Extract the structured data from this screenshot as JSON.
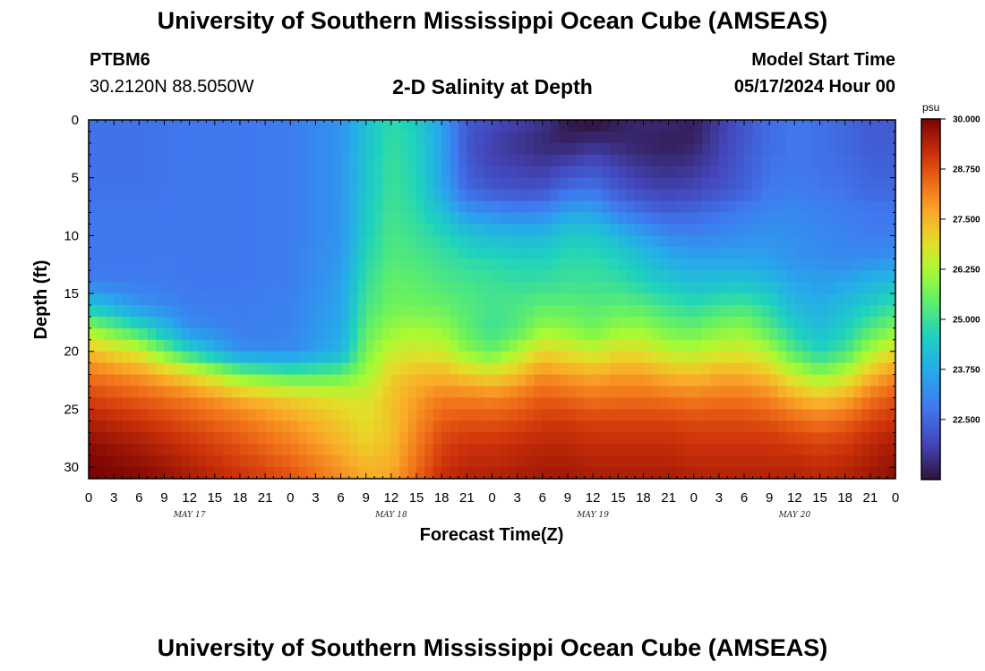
{
  "header": {
    "title": "University of Southern Mississippi Ocean Cube (AMSEAS)",
    "station_id": "PTBM6",
    "coordinates": "30.2120N  88.5050W",
    "plot_title": "2-D Salinity at Depth",
    "model_start_label": "Model Start Time",
    "model_start_value": "05/17/2024 Hour 00"
  },
  "footer": {
    "title": "University of Southern Mississippi Ocean Cube (AMSEAS)"
  },
  "chart_data": {
    "type": "heatmap",
    "title": "2-D Salinity at Depth",
    "xlabel": "Forecast Time(Z)",
    "ylabel": "Depth (ft)",
    "x_tick_labels": [
      "0",
      "3",
      "6",
      "9",
      "12",
      "15",
      "18",
      "21",
      "0",
      "3",
      "6",
      "9",
      "12",
      "15",
      "18",
      "21",
      "0",
      "3",
      "6",
      "9",
      "12",
      "15",
      "18",
      "21",
      "0",
      "3",
      "6",
      "9",
      "12",
      "15",
      "18",
      "21",
      "0"
    ],
    "day_labels": [
      {
        "label": "MAY 17",
        "x_hours": 12
      },
      {
        "label": "MAY 18",
        "x_hours": 36
      },
      {
        "label": "MAY 19",
        "x_hours": 60
      },
      {
        "label": "MAY 20",
        "x_hours": 84
      }
    ],
    "x_range_hours": [
      0,
      96
    ],
    "y_range_ft": [
      0,
      31
    ],
    "y_tick_labels": [
      "0",
      "5",
      "10",
      "15",
      "20",
      "25",
      "30"
    ],
    "y_ticks": [
      0,
      5,
      10,
      15,
      20,
      25,
      30
    ],
    "colorbar": {
      "unit": "psu",
      "min": 21.0,
      "max": 30.0,
      "tick_labels": [
        "30.000",
        "28.750",
        "27.500",
        "26.250",
        "25.000",
        "23.750",
        "22.500"
      ],
      "ticks": [
        30.0,
        28.75,
        27.5,
        26.25,
        25.0,
        23.75,
        22.5
      ]
    },
    "salinity_psu": {
      "depth_ft": [
        0,
        2,
        4,
        6,
        8,
        10,
        12,
        14,
        16,
        18,
        20,
        22,
        24,
        26,
        28,
        30,
        31
      ],
      "time_hours": [
        0,
        6,
        12,
        18,
        24,
        30,
        33,
        36,
        39,
        42,
        45,
        48,
        51,
        54,
        57,
        60,
        63,
        66,
        69,
        72,
        75,
        78,
        81,
        84,
        87,
        90,
        93,
        96
      ],
      "values": [
        [
          22.7,
          22.7,
          22.8,
          22.8,
          22.9,
          23.3,
          24.2,
          24.8,
          24.5,
          23.5,
          22.3,
          22.0,
          21.8,
          21.6,
          21.1,
          20.9,
          21.2,
          21.4,
          21.4,
          21.2,
          21.7,
          22.2,
          22.6,
          22.8,
          22.7,
          22.5,
          22.3,
          22.3
        ],
        [
          22.7,
          22.7,
          22.8,
          22.8,
          22.9,
          23.3,
          24.2,
          24.9,
          24.6,
          23.6,
          22.2,
          21.8,
          21.6,
          21.4,
          21.3,
          21.5,
          21.4,
          21.3,
          21.2,
          21.3,
          21.8,
          22.2,
          22.6,
          22.8,
          22.7,
          22.5,
          22.3,
          22.3
        ],
        [
          22.7,
          22.7,
          22.8,
          22.8,
          22.9,
          23.3,
          24.3,
          25.0,
          24.6,
          23.6,
          22.3,
          21.9,
          21.8,
          21.7,
          21.9,
          22.1,
          21.8,
          21.6,
          21.5,
          21.6,
          21.9,
          22.3,
          22.7,
          22.8,
          22.7,
          22.6,
          22.4,
          22.4
        ],
        [
          22.7,
          22.7,
          22.8,
          22.8,
          22.9,
          23.3,
          24.3,
          25.0,
          24.7,
          23.7,
          22.5,
          22.2,
          22.1,
          22.1,
          22.6,
          22.7,
          22.2,
          21.9,
          21.8,
          21.9,
          22.1,
          22.4,
          22.8,
          22.9,
          22.8,
          22.7,
          22.5,
          22.5
        ],
        [
          22.8,
          22.8,
          22.8,
          22.8,
          22.9,
          23.3,
          24.4,
          25.1,
          24.8,
          24.2,
          23.4,
          23.2,
          23.0,
          23.1,
          23.6,
          23.6,
          23.0,
          22.6,
          22.4,
          22.5,
          22.7,
          22.9,
          23.1,
          23.1,
          23.0,
          22.9,
          22.8,
          22.8
        ],
        [
          22.8,
          22.8,
          22.8,
          22.8,
          22.9,
          23.3,
          24.5,
          25.2,
          25.0,
          24.7,
          24.3,
          24.1,
          24.0,
          24.0,
          24.4,
          24.4,
          24.0,
          23.5,
          23.1,
          23.0,
          23.1,
          23.2,
          23.3,
          23.2,
          23.1,
          23.0,
          22.9,
          22.9
        ],
        [
          22.8,
          22.8,
          22.8,
          22.8,
          22.9,
          23.4,
          24.7,
          25.3,
          25.2,
          25.0,
          24.8,
          24.7,
          24.6,
          24.6,
          24.8,
          24.8,
          24.6,
          24.2,
          23.8,
          23.6,
          23.6,
          23.6,
          23.5,
          23.3,
          23.2,
          23.1,
          23.2,
          23.3
        ],
        [
          22.9,
          22.9,
          22.8,
          22.8,
          22.9,
          23.5,
          24.9,
          25.5,
          25.4,
          25.2,
          25.1,
          25.0,
          24.9,
          24.9,
          25.0,
          25.0,
          24.9,
          24.6,
          24.3,
          24.1,
          24.2,
          24.2,
          24.0,
          23.6,
          23.5,
          23.6,
          23.9,
          24.1
        ],
        [
          24.3,
          23.3,
          22.9,
          22.9,
          23.0,
          23.6,
          25.1,
          25.6,
          25.6,
          25.5,
          25.3,
          25.1,
          25.2,
          25.4,
          25.4,
          25.3,
          25.4,
          25.3,
          25.0,
          24.8,
          25.0,
          25.1,
          24.7,
          24.0,
          23.8,
          24.1,
          24.5,
          24.9
        ],
        [
          26.0,
          24.8,
          23.2,
          22.9,
          23.0,
          23.7,
          25.4,
          26.0,
          26.1,
          26.0,
          25.4,
          25.0,
          25.3,
          26.0,
          25.9,
          25.6,
          26.0,
          26.0,
          25.6,
          25.5,
          25.8,
          25.9,
          25.3,
          24.5,
          24.1,
          24.5,
          25.2,
          25.8
        ],
        [
          27.4,
          26.6,
          24.6,
          23.2,
          23.1,
          23.9,
          25.7,
          26.5,
          26.7,
          26.6,
          25.9,
          25.5,
          26.2,
          27.0,
          26.8,
          26.5,
          26.9,
          26.8,
          26.4,
          26.3,
          26.6,
          26.7,
          26.2,
          25.2,
          24.6,
          25.1,
          26.2,
          26.9
        ],
        [
          28.3,
          27.9,
          27.0,
          25.7,
          25.2,
          25.4,
          26.1,
          27.1,
          27.4,
          27.5,
          27.2,
          27.0,
          27.4,
          28.0,
          27.8,
          27.6,
          27.8,
          27.8,
          27.5,
          27.4,
          27.6,
          27.6,
          27.3,
          26.5,
          25.9,
          26.4,
          27.4,
          28.0
        ],
        [
          28.9,
          28.6,
          28.2,
          27.6,
          27.1,
          26.8,
          26.7,
          27.3,
          27.8,
          28.2,
          28.2,
          28.1,
          28.3,
          28.6,
          28.5,
          28.3,
          28.4,
          28.4,
          28.3,
          28.2,
          28.3,
          28.3,
          28.1,
          27.6,
          27.3,
          27.6,
          28.3,
          28.7
        ],
        [
          29.4,
          29.1,
          28.7,
          28.3,
          27.8,
          27.2,
          26.9,
          27.3,
          28.0,
          28.6,
          28.7,
          28.7,
          28.8,
          29.0,
          29.0,
          28.9,
          28.9,
          28.9,
          28.9,
          28.8,
          28.8,
          28.8,
          28.7,
          28.5,
          28.3,
          28.5,
          28.9,
          29.1
        ],
        [
          29.8,
          29.5,
          29.1,
          28.7,
          28.2,
          27.5,
          27.1,
          27.4,
          28.2,
          28.9,
          29.1,
          29.1,
          29.2,
          29.3,
          29.3,
          29.2,
          29.2,
          29.2,
          29.2,
          29.1,
          29.1,
          29.1,
          29.1,
          29.0,
          28.9,
          29.0,
          29.3,
          29.5
        ],
        [
          30.0,
          29.8,
          29.4,
          29.0,
          28.6,
          27.9,
          27.5,
          27.6,
          28.4,
          29.1,
          29.3,
          29.3,
          29.4,
          29.5,
          29.5,
          29.4,
          29.4,
          29.4,
          29.4,
          29.3,
          29.3,
          29.3,
          29.3,
          29.3,
          29.2,
          29.3,
          29.5,
          29.7
        ],
        [
          30.0,
          29.9,
          29.5,
          29.1,
          28.7,
          28.0,
          27.6,
          27.7,
          28.5,
          29.2,
          29.4,
          29.4,
          29.5,
          29.6,
          29.6,
          29.5,
          29.5,
          29.5,
          29.5,
          29.4,
          29.4,
          29.4,
          29.4,
          29.4,
          29.3,
          29.4,
          29.6,
          29.8
        ]
      ]
    }
  }
}
